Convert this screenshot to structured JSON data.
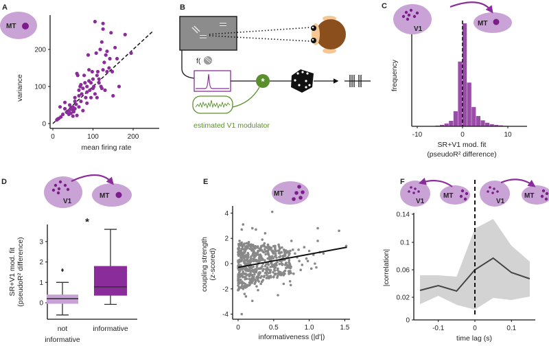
{
  "panels": {
    "A": "A",
    "B": "B",
    "C": "C",
    "D": "D",
    "E": "E",
    "F": "F"
  },
  "areas": {
    "mt": "MT",
    "v1": "V1"
  },
  "colors": {
    "purple": "#8a2d9a",
    "light_purple": "#c9a2d6",
    "dark_purple": "#7b1e8c",
    "green": "#5a8f2b",
    "gray_points": "#888888",
    "band": "#d3d3d3",
    "line": "#444444"
  },
  "diagram_b": {
    "f_label": "f(",
    "conv_symbol": "*",
    "modulator_label": "estimated V1 modulator",
    "icons": [
      "stimulus-screen",
      "monkey-head",
      "grating-icon",
      "tuning-curve",
      "convolution-node",
      "dice-icon",
      "spike-train"
    ]
  },
  "chart_data": [
    {
      "panel": "A",
      "type": "scatter",
      "title": "",
      "xlabel": "mean firing rate",
      "ylabel": "variance",
      "xlim": [
        0,
        260
      ],
      "ylim": [
        0,
        280
      ],
      "xticks": [
        "0",
        "100",
        "200"
      ],
      "yticks": [
        "0",
        "100",
        "200"
      ],
      "reference_line": "identity (dashed)",
      "points": [
        [
          10,
          10
        ],
        [
          12,
          12
        ],
        [
          15,
          14
        ],
        [
          18,
          45
        ],
        [
          20,
          18
        ],
        [
          25,
          25
        ],
        [
          30,
          57
        ],
        [
          30,
          40
        ],
        [
          35,
          30
        ],
        [
          40,
          35
        ],
        [
          42,
          50
        ],
        [
          45,
          28
        ],
        [
          48,
          38
        ],
        [
          50,
          20
        ],
        [
          50,
          45
        ],
        [
          52,
          32
        ],
        [
          55,
          70
        ],
        [
          55,
          40
        ],
        [
          58,
          52
        ],
        [
          60,
          135
        ],
        [
          60,
          22
        ],
        [
          62,
          130
        ],
        [
          65,
          45
        ],
        [
          65,
          90
        ],
        [
          68,
          100
        ],
        [
          70,
          60
        ],
        [
          72,
          80
        ],
        [
          75,
          95
        ],
        [
          78,
          130
        ],
        [
          80,
          110
        ],
        [
          82,
          70
        ],
        [
          85,
          55
        ],
        [
          85,
          100
        ],
        [
          88,
          185
        ],
        [
          90,
          145
        ],
        [
          92,
          90
        ],
        [
          95,
          110
        ],
        [
          98,
          140
        ],
        [
          100,
          95
        ],
        [
          100,
          120
        ],
        [
          102,
          100
        ],
        [
          105,
          80
        ],
        [
          105,
          275
        ],
        [
          108,
          190
        ],
        [
          110,
          70
        ],
        [
          110,
          130
        ],
        [
          112,
          140
        ],
        [
          115,
          110
        ],
        [
          118,
          200
        ],
        [
          120,
          100
        ],
        [
          122,
          220
        ],
        [
          122,
          95
        ],
        [
          125,
          270
        ],
        [
          125,
          255
        ],
        [
          125,
          145
        ],
        [
          128,
          165
        ],
        [
          130,
          90
        ],
        [
          132,
          185
        ],
        [
          135,
          195
        ],
        [
          140,
          150
        ],
        [
          142,
          175
        ],
        [
          145,
          245
        ],
        [
          148,
          140
        ],
        [
          150,
          75
        ],
        [
          155,
          205
        ],
        [
          160,
          175
        ],
        [
          165,
          100
        ],
        [
          180,
          240
        ],
        [
          195,
          190
        ],
        [
          95,
          70
        ],
        [
          75,
          35
        ],
        [
          85,
          85
        ],
        [
          70,
          105
        ],
        [
          55,
          60
        ],
        [
          40,
          25
        ],
        [
          45,
          42
        ],
        [
          65,
          75
        ],
        [
          90,
          115
        ],
        [
          115,
          120
        ],
        [
          135,
          140
        ]
      ]
    },
    {
      "panel": "C",
      "type": "bar",
      "title": "",
      "xlabel": "SR+V1 mod. fit",
      "xlabel2": "(pseudoR² difference)",
      "ylabel": "frequency",
      "xlim": [
        -11,
        15
      ],
      "xticks": [
        "-10",
        "0",
        "10"
      ],
      "bin_edges_start": [
        -6,
        -5,
        -4,
        -3,
        -2,
        -1,
        0,
        1,
        2,
        3,
        4,
        5,
        6,
        7,
        8,
        9,
        10
      ],
      "bin_width": 1,
      "values": [
        3,
        6,
        12,
        23,
        63,
        271,
        431,
        183,
        81,
        43,
        25,
        15,
        9,
        6,
        4,
        2,
        1
      ],
      "reference_line": "x = 0 (dashed)"
    },
    {
      "panel": "D",
      "type": "box",
      "title": "",
      "ylabel": "SR+V1 mod. fit",
      "ylabel2": "(pseudoR² difference)",
      "ylim": [
        -0.7,
        3.8
      ],
      "yticks": [
        "0",
        "1",
        "2",
        "3"
      ],
      "significance": "*",
      "categories": [
        {
          "label": "not",
          "label2": "informative",
          "whisker_low": -0.6,
          "q1": -0.05,
          "median": 0.2,
          "q3": 0.4,
          "whisker_high": 1.0,
          "outliers": [
            1.6
          ]
        },
        {
          "label": "informative",
          "label2": "",
          "whisker_low": -0.08,
          "q1": 0.35,
          "median": 0.78,
          "q3": 1.8,
          "whisker_high": 3.6,
          "outliers": []
        }
      ]
    },
    {
      "panel": "E",
      "type": "scatter",
      "title": "",
      "xlabel": "informativeness (|d'|)",
      "ylabel": "coupling strength",
      "ylabel2": "(z-scored)",
      "xlim": [
        -0.05,
        1.6
      ],
      "ylim": [
        -4.2,
        4.4
      ],
      "xticks": [
        "0",
        "0.5",
        "1.0",
        "1.5"
      ],
      "yticks": [
        "4",
        "2",
        "0",
        "-2",
        "-4"
      ],
      "regression": {
        "x": [
          0,
          1.53
        ],
        "y": [
          -0.3,
          1.3
        ]
      },
      "points": [
        [
          0.05,
          -4.0
        ],
        [
          0.48,
          4.1
        ],
        [
          0.07,
          3.1
        ],
        [
          0.05,
          2.7
        ],
        [
          0.2,
          2.8
        ],
        [
          0.25,
          2.7
        ],
        [
          0.38,
          2.4
        ],
        [
          1.12,
          2.8
        ],
        [
          1.42,
          2.6
        ],
        [
          1.52,
          1.4
        ],
        [
          0.02,
          1.8
        ],
        [
          0.04,
          1.5
        ],
        [
          0.06,
          1.2
        ],
        [
          0.08,
          0.9
        ],
        [
          0.1,
          0.6
        ],
        [
          0.12,
          0.3
        ],
        [
          0.14,
          0.0
        ],
        [
          0.16,
          -0.3
        ],
        [
          0.18,
          -0.6
        ],
        [
          0.2,
          -0.9
        ],
        [
          0.22,
          -1.2
        ],
        [
          0.24,
          -1.5
        ],
        [
          0.26,
          -1.8
        ],
        [
          0.28,
          -2.1
        ],
        [
          0.01,
          -0.5
        ],
        [
          0.03,
          -1.0
        ],
        [
          0.05,
          -1.5
        ],
        [
          0.07,
          -2.0
        ],
        [
          0.09,
          -2.4
        ],
        [
          0.11,
          -2.6
        ],
        [
          0.13,
          -1.7
        ],
        [
          0.15,
          1.7
        ],
        [
          0.17,
          1.4
        ],
        [
          0.19,
          1.1
        ],
        [
          0.21,
          0.8
        ],
        [
          0.23,
          0.5
        ],
        [
          0.25,
          0.2
        ],
        [
          0.27,
          -0.1
        ],
        [
          0.29,
          -0.4
        ],
        [
          0.31,
          -0.7
        ],
        [
          0.33,
          -1.0
        ],
        [
          0.35,
          -1.3
        ],
        [
          0.37,
          1.6
        ],
        [
          0.39,
          1.3
        ],
        [
          0.41,
          1.0
        ],
        [
          0.43,
          0.7
        ],
        [
          0.45,
          0.4
        ],
        [
          0.47,
          0.1
        ],
        [
          0.49,
          -0.2
        ],
        [
          0.51,
          -0.5
        ],
        [
          0.53,
          -0.8
        ],
        [
          0.55,
          -1.1
        ],
        [
          0.57,
          1.5
        ],
        [
          0.59,
          1.2
        ],
        [
          0.61,
          0.9
        ],
        [
          0.63,
          0.6
        ],
        [
          0.65,
          0.3
        ],
        [
          0.67,
          0.0
        ],
        [
          0.69,
          -0.3
        ],
        [
          0.71,
          -0.6
        ],
        [
          0.73,
          -1.4
        ],
        [
          0.75,
          1.8
        ],
        [
          0.77,
          1.1
        ],
        [
          0.8,
          0.8
        ],
        [
          0.83,
          0.5
        ],
        [
          0.86,
          0.2
        ],
        [
          0.9,
          -0.1
        ],
        [
          0.93,
          1.3
        ],
        [
          0.96,
          0.4
        ],
        [
          1.0,
          1.0
        ],
        [
          1.03,
          -0.4
        ],
        [
          1.06,
          0.7
        ],
        [
          1.1,
          -0.3
        ],
        [
          1.12,
          1.8
        ],
        [
          1.15,
          0.9
        ],
        [
          1.2,
          0.8
        ],
        [
          0.02,
          0.3
        ],
        [
          0.04,
          -0.2
        ],
        [
          0.06,
          0.5
        ],
        [
          0.08,
          -0.8
        ],
        [
          0.1,
          1.0
        ],
        [
          0.12,
          -1.2
        ],
        [
          0.14,
          0.8
        ],
        [
          0.16,
          -1.5
        ],
        [
          0.18,
          0.4
        ],
        [
          0.2,
          -2.95
        ],
        [
          0.22,
          0.2
        ],
        [
          0.24,
          1.2
        ],
        [
          0.3,
          0.6
        ],
        [
          0.32,
          -1.6
        ],
        [
          0.34,
          1.9
        ],
        [
          0.36,
          0.9
        ],
        [
          0.4,
          -0.6
        ],
        [
          0.42,
          1.5
        ],
        [
          0.44,
          -1.1
        ],
        [
          0.46,
          0.3
        ],
        [
          0.56,
          -2.5
        ],
        [
          0.6,
          -0.9
        ],
        [
          0.64,
          -1.6
        ],
        [
          0.74,
          -1.7
        ],
        [
          0.78,
          -0.8
        ],
        [
          0.03,
          0.9
        ],
        [
          0.09,
          0.1
        ],
        [
          0.11,
          -0.4
        ],
        [
          0.13,
          0.5
        ],
        [
          0.17,
          -0.1
        ],
        [
          0.21,
          -0.5
        ],
        [
          0.26,
          0.7
        ],
        [
          0.28,
          1.0
        ],
        [
          0.38,
          -0.2
        ],
        [
          0.5,
          0.8
        ],
        [
          0.52,
          1.4
        ],
        [
          0.62,
          -0.1
        ],
        [
          0.7,
          0.5
        ],
        [
          0.85,
          1.1
        ],
        [
          0.88,
          -0.5
        ],
        [
          0.98,
          0.2
        ],
        [
          1.08,
          0.0
        ]
      ]
    },
    {
      "panel": "F",
      "type": "line",
      "title": "",
      "xlabel": "time lag (s)",
      "ylabel": "|correlation|",
      "xlim": [
        -0.15,
        0.15
      ],
      "ylim": [
        -0.013,
        0.145
      ],
      "xticks": [
        "-0.1",
        "0",
        "0.1"
      ],
      "yticks": [
        "0.14",
        "0.1",
        "0.06",
        "0.02",
        "0"
      ],
      "x": [
        -0.15,
        -0.1,
        -0.05,
        0,
        0.05,
        0.1,
        0.15
      ],
      "mean": [
        0.03,
        0.037,
        0.029,
        0.06,
        0.077,
        0.056,
        0.047
      ],
      "upper": [
        0.052,
        0.052,
        0.05,
        0.12,
        0.134,
        0.095,
        0.072
      ],
      "lower": [
        0.01,
        0.022,
        0.009,
        0.002,
        0.019,
        0.016,
        0.021
      ],
      "reference_line": "x = 0 (dashed)"
    }
  ]
}
